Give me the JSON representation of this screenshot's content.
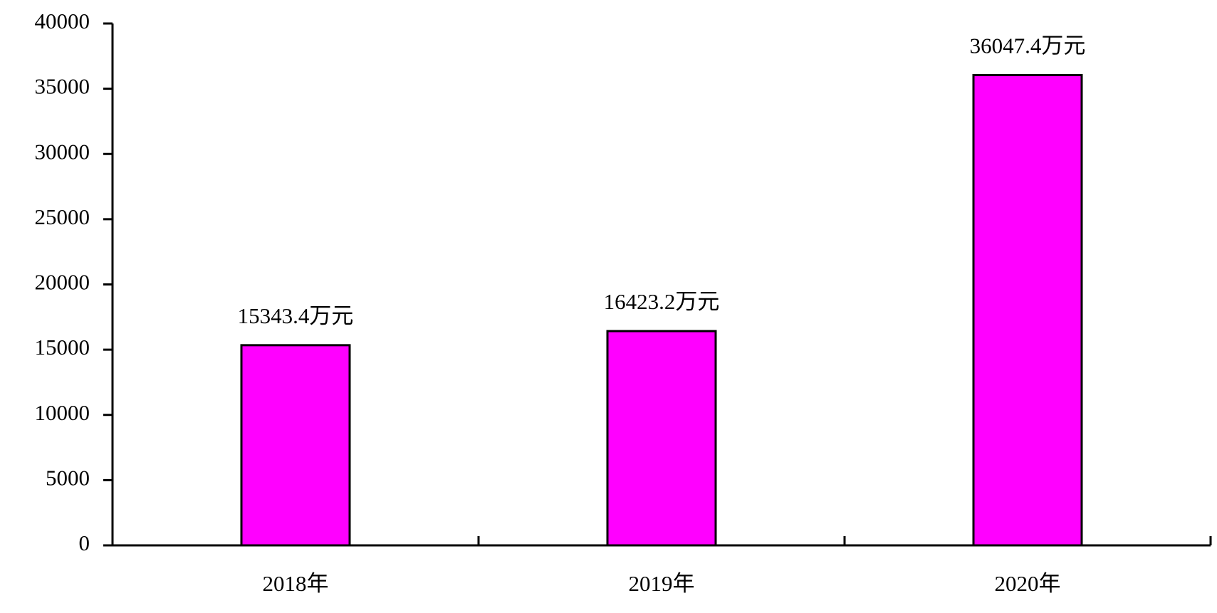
{
  "chart_data": {
    "type": "bar",
    "categories": [
      "2018年",
      "2019年",
      "2020年"
    ],
    "values": [
      15343.4,
      16423.2,
      36047.4
    ],
    "value_labels": [
      "15343.4万元",
      "16423.2万元",
      "36047.4万元"
    ],
    "color": "#ff00ff",
    "ylim": [
      0,
      40000
    ],
    "yticks": [
      0,
      5000,
      10000,
      15000,
      20000,
      25000,
      30000,
      35000,
      40000
    ],
    "grid": false
  }
}
